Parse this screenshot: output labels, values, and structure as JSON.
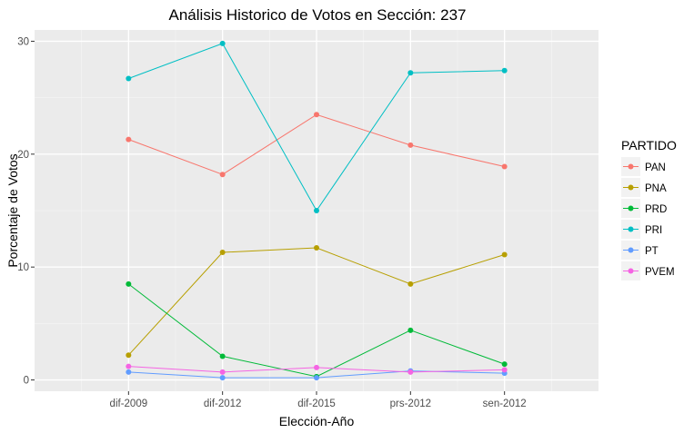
{
  "chart_data": {
    "type": "line",
    "title": "Análisis Historico de Votos en Sección: 237",
    "xlabel": "Elección-Año",
    "ylabel": "Porcentaje de Votos",
    "categories": [
      "dif-2009",
      "dif-2012",
      "dif-2015",
      "prs-2012",
      "sen-2012"
    ],
    "ylim": [
      -1,
      31
    ],
    "yticks": [
      0,
      10,
      20,
      30
    ],
    "grid": true,
    "legend": {
      "title": "PARTIDO",
      "position": "right"
    },
    "series": [
      {
        "name": "PAN",
        "color": "#F8766D",
        "values": [
          21.3,
          18.2,
          23.5,
          20.8,
          18.9
        ]
      },
      {
        "name": "PNA",
        "color": "#B79F00",
        "values": [
          2.2,
          11.3,
          11.7,
          8.5,
          11.1
        ]
      },
      {
        "name": "PRD",
        "color": "#00BA38",
        "values": [
          8.5,
          2.1,
          0.3,
          4.4,
          1.4
        ]
      },
      {
        "name": "PRI",
        "color": "#00BFC4",
        "values": [
          26.7,
          29.8,
          15.0,
          27.2,
          27.4
        ]
      },
      {
        "name": "PT",
        "color": "#619CFF",
        "values": [
          0.7,
          0.2,
          0.2,
          0.8,
          0.6
        ]
      },
      {
        "name": "PVEM",
        "color": "#F564E3",
        "values": [
          1.2,
          0.7,
          1.1,
          0.7,
          0.9
        ]
      }
    ]
  }
}
